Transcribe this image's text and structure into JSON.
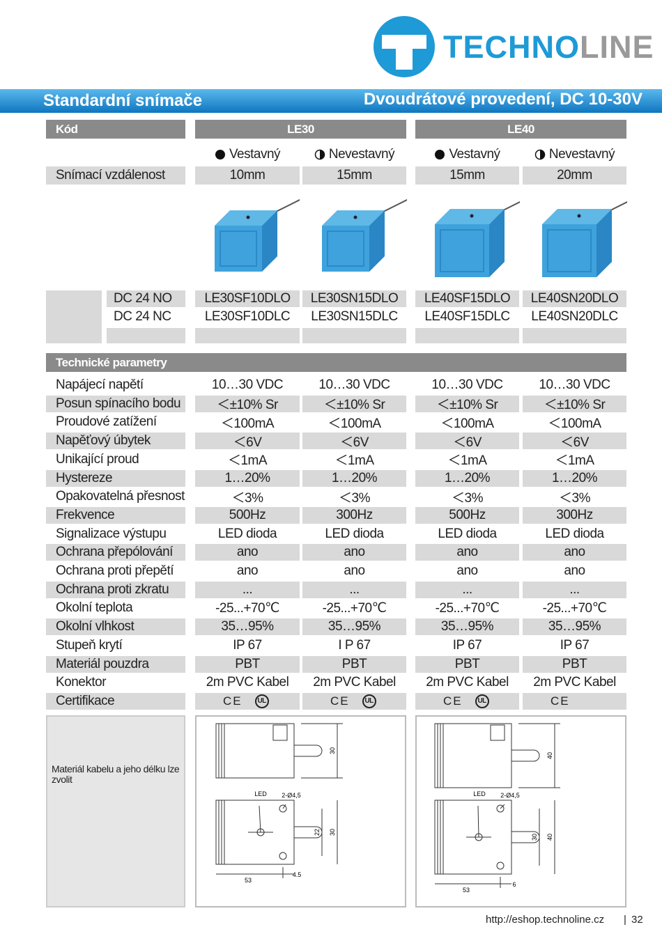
{
  "header": {
    "brand": [
      "TECHNO",
      "LINE"
    ]
  },
  "banner": {
    "left": "Standardní snímače",
    "right": "Dvoudrátové provedení, DC 10-30V"
  },
  "code_table": {
    "code_label": "Kód",
    "groups": [
      "LE30",
      "LE40"
    ],
    "mounting": [
      "Vestavný",
      "Nevestavný",
      "Vestavný",
      "Nevestavný"
    ],
    "distance_label": "Snímací vzdálenost",
    "distances": [
      "10mm",
      "15mm",
      "15mm",
      "20mm"
    ],
    "models": [
      {
        "label": "DC 24  NO",
        "values": [
          "LE30SF10DLO",
          "LE30SN15DLO",
          "LE40SF15DLO",
          "LE40SN20DLO"
        ]
      },
      {
        "label": "DC 24  NC",
        "values": [
          "LE30SF10DLC",
          "LE30SN15DLC",
          "LE40SF15DLC",
          "LE40SN20DLC"
        ]
      }
    ]
  },
  "tech": {
    "title": "Technické parametry",
    "rows": [
      {
        "label": "Napájecí napětí",
        "values": [
          "10…30 VDC",
          "10…30 VDC",
          "10…30 VDC",
          "10…30 VDC"
        ]
      },
      {
        "label": "Posun spínacího bodu",
        "values": [
          "＜±10% Sr",
          "＜±10% Sr",
          "＜±10% Sr",
          "＜±10% Sr"
        ]
      },
      {
        "label": "Proudové zatížení",
        "values": [
          "＜100mA",
          "＜100mA",
          "＜100mA",
          "＜100mA"
        ]
      },
      {
        "label": "Napěťový úbytek",
        "values": [
          "＜6V",
          "＜6V",
          "＜6V",
          "＜6V"
        ]
      },
      {
        "label": "Unikající proud",
        "values": [
          "＜1mA",
          "＜1mA",
          "＜1mA",
          "＜1mA"
        ]
      },
      {
        "label": "Hystereze",
        "values": [
          "1…20%",
          "1…20%",
          "1…20%",
          "1…20%"
        ]
      },
      {
        "label": "Opakovatelná přesnost",
        "values": [
          "＜3%",
          "＜3%",
          "＜3%",
          "＜3%"
        ]
      },
      {
        "label": "Frekvence",
        "values": [
          "500Hz",
          "300Hz",
          "500Hz",
          "300Hz"
        ]
      },
      {
        "label": "Signalizace výstupu",
        "values": [
          "LED dioda",
          "LED dioda",
          "LED dioda",
          "LED dioda"
        ]
      },
      {
        "label": "Ochrana  přepólování",
        "values": [
          "ano",
          "ano",
          "ano",
          "ano"
        ]
      },
      {
        "label": "Ochrana proti přepětí",
        "values": [
          "ano",
          "ano",
          "ano",
          "ano"
        ]
      },
      {
        "label": "Ochrana proti zkratu",
        "values": [
          "...",
          "...",
          "...",
          "..."
        ]
      },
      {
        "label": "Okolní teplota",
        "values": [
          "-25...+70℃",
          "-25...+70℃",
          "-25...+70℃",
          "-25...+70℃"
        ]
      },
      {
        "label": "Okolní vlhkost",
        "values": [
          "35…95%",
          "35…95%",
          "35…95%",
          "35…95%"
        ]
      },
      {
        "label": "Stupeň krytí",
        "values": [
          "IP 67",
          "I P 67",
          "IP 67",
          "IP 67"
        ]
      },
      {
        "label": "Materiál pouzdra",
        "values": [
          "PBT",
          "PBT",
          "PBT",
          "PBT"
        ]
      },
      {
        "label": "Konektor",
        "values": [
          "2m PVC Kabel",
          "2m PVC Kabel",
          "2m PVC Kabel",
          "2m PVC Kabel"
        ]
      }
    ],
    "cert_label": "Certifikace",
    "certs": [
      [
        "CE",
        "UL"
      ],
      [
        "CE",
        "UL"
      ],
      [
        "CE",
        "UL"
      ],
      [
        "CE"
      ]
    ]
  },
  "note": "Materiál kabelu a jeho délku lze zvolit",
  "drawings": [
    {
      "height_top": "30",
      "led": "LED",
      "holes": "2-Ø4,5",
      "inner": "22",
      "height_bottom": "30",
      "offset": "4.5",
      "length": "53"
    },
    {
      "height_top": "40",
      "led": "LED",
      "holes": "2-Ø4,5",
      "inner": "30",
      "height_bottom": "40",
      "offset": "6",
      "length": "53"
    }
  ],
  "footer": {
    "url": "http://eshop.technoline.cz",
    "page": "32"
  }
}
